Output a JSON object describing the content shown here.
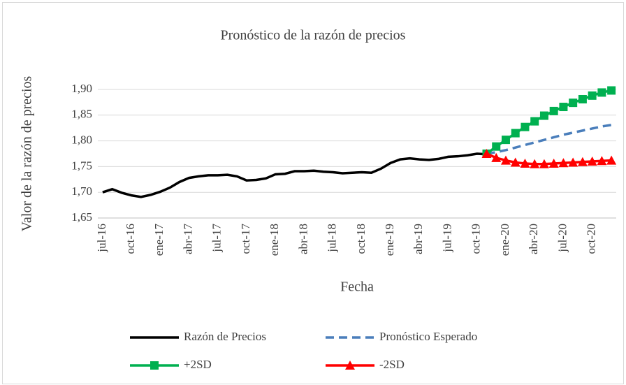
{
  "chart_data": {
    "type": "line",
    "title": "Pronóstico de la razón de precios",
    "x_label": "Fecha",
    "y_label": "Valor de la razón de precios",
    "categories": [
      "jul-16",
      null,
      null,
      "oct-16",
      null,
      null,
      "ene-17",
      null,
      null,
      "abr-17",
      null,
      null,
      "jul-17",
      null,
      null,
      "oct-17",
      null,
      null,
      "ene-18",
      null,
      null,
      "abr-18",
      null,
      null,
      "jul-18",
      null,
      null,
      "oct-18",
      null,
      null,
      "ene-19",
      null,
      null,
      "abr-19",
      null,
      null,
      "jul-19",
      null,
      null,
      "oct-19",
      null,
      null,
      "ene-20",
      null,
      null,
      "abr-20",
      null,
      null,
      "jul-20",
      null,
      null,
      "oct-20",
      null,
      null
    ],
    "series": [
      {
        "name": "Razón de Precios",
        "color": "#000000",
        "dashed": false,
        "marker": null,
        "values": [
          1.7,
          1.706,
          1.699,
          1.694,
          1.691,
          1.695,
          1.701,
          1.709,
          1.72,
          1.728,
          1.731,
          1.733,
          1.733,
          1.734,
          1.731,
          1.723,
          1.724,
          1.727,
          1.735,
          1.736,
          1.741,
          1.741,
          1.742,
          1.74,
          1.739,
          1.737,
          1.738,
          1.739,
          1.738,
          1.746,
          1.757,
          1.764,
          1.766,
          1.764,
          1.763,
          1.765,
          1.769,
          1.77,
          1.772,
          1.775,
          1.774,
          null,
          null,
          null,
          null,
          null,
          null,
          null,
          null,
          null,
          null,
          null,
          null,
          null
        ]
      },
      {
        "name": "Pronóstico Esperado",
        "color": "#4a7ebb",
        "dashed": true,
        "marker": null,
        "values": [
          null,
          null,
          null,
          null,
          null,
          null,
          null,
          null,
          null,
          null,
          null,
          null,
          null,
          null,
          null,
          null,
          null,
          null,
          null,
          null,
          null,
          null,
          null,
          null,
          null,
          null,
          null,
          null,
          null,
          null,
          null,
          null,
          null,
          null,
          null,
          null,
          null,
          null,
          null,
          null,
          1.775,
          1.778,
          1.782,
          1.787,
          1.792,
          1.797,
          1.802,
          1.807,
          1.812,
          1.816,
          1.82,
          1.824,
          1.828,
          1.831
        ]
      },
      {
        "name": "+2SD",
        "color": "#00b050",
        "dashed": false,
        "marker": "square",
        "values": [
          null,
          null,
          null,
          null,
          null,
          null,
          null,
          null,
          null,
          null,
          null,
          null,
          null,
          null,
          null,
          null,
          null,
          null,
          null,
          null,
          null,
          null,
          null,
          null,
          null,
          null,
          null,
          null,
          null,
          null,
          null,
          null,
          null,
          null,
          null,
          null,
          null,
          null,
          null,
          null,
          1.775,
          1.789,
          1.802,
          1.815,
          1.827,
          1.838,
          1.849,
          1.858,
          1.866,
          1.874,
          1.881,
          1.888,
          1.894,
          1.898
        ]
      },
      {
        "name": "-2SD",
        "color": "#ff0000",
        "dashed": false,
        "marker": "triangle",
        "values": [
          null,
          null,
          null,
          null,
          null,
          null,
          null,
          null,
          null,
          null,
          null,
          null,
          null,
          null,
          null,
          null,
          null,
          null,
          null,
          null,
          null,
          null,
          null,
          null,
          null,
          null,
          null,
          null,
          null,
          null,
          null,
          null,
          null,
          null,
          null,
          null,
          null,
          null,
          null,
          null,
          1.775,
          1.767,
          1.762,
          1.758,
          1.756,
          1.755,
          1.755,
          1.756,
          1.757,
          1.758,
          1.759,
          1.76,
          1.761,
          1.762
        ]
      }
    ],
    "ylim": [
      1.65,
      1.9
    ],
    "yticks": [
      {
        "value": 1.65,
        "label": "1,65"
      },
      {
        "value": 1.7,
        "label": "1,70"
      },
      {
        "value": 1.75,
        "label": "1,75"
      },
      {
        "value": 1.8,
        "label": "1,80"
      },
      {
        "value": 1.85,
        "label": "1,85"
      },
      {
        "value": 1.9,
        "label": "1,90"
      }
    ],
    "grid": true,
    "legend": "bottom"
  }
}
